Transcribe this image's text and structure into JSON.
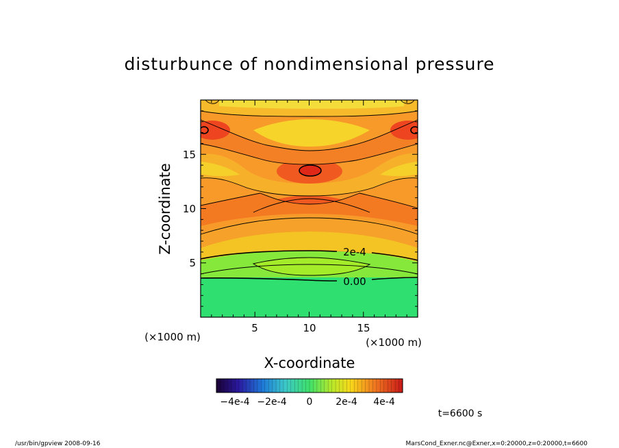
{
  "chart_data": {
    "type": "heatmap",
    "title": "disturbunce of nondimensional pressure",
    "xlabel": "X-coordinate",
    "ylabel": "Z-coordinate",
    "x_unit": "(×1000 m)",
    "y_unit": "(×1000 m)",
    "xlim": [
      0,
      20
    ],
    "ylim": [
      0,
      20
    ],
    "x_ticks": [
      "5",
      "10",
      "15"
    ],
    "y_ticks": [
      "5",
      "10",
      "15"
    ],
    "contour_labels": [
      "2e-4",
      "0.00"
    ],
    "colorbar": {
      "range": [
        -0.0005,
        0.0005
      ],
      "tick_labels": [
        "−4e-4",
        "−2e-4",
        "0",
        "2e-4",
        "4e-4"
      ]
    },
    "time_label": "t=6600 s",
    "footer_left": "/usr/bin/gpview   2008-09-16",
    "footer_right": "MarsCond_Exner.nc@Exner,x=0:20000,z=0:20000,t=6600"
  }
}
